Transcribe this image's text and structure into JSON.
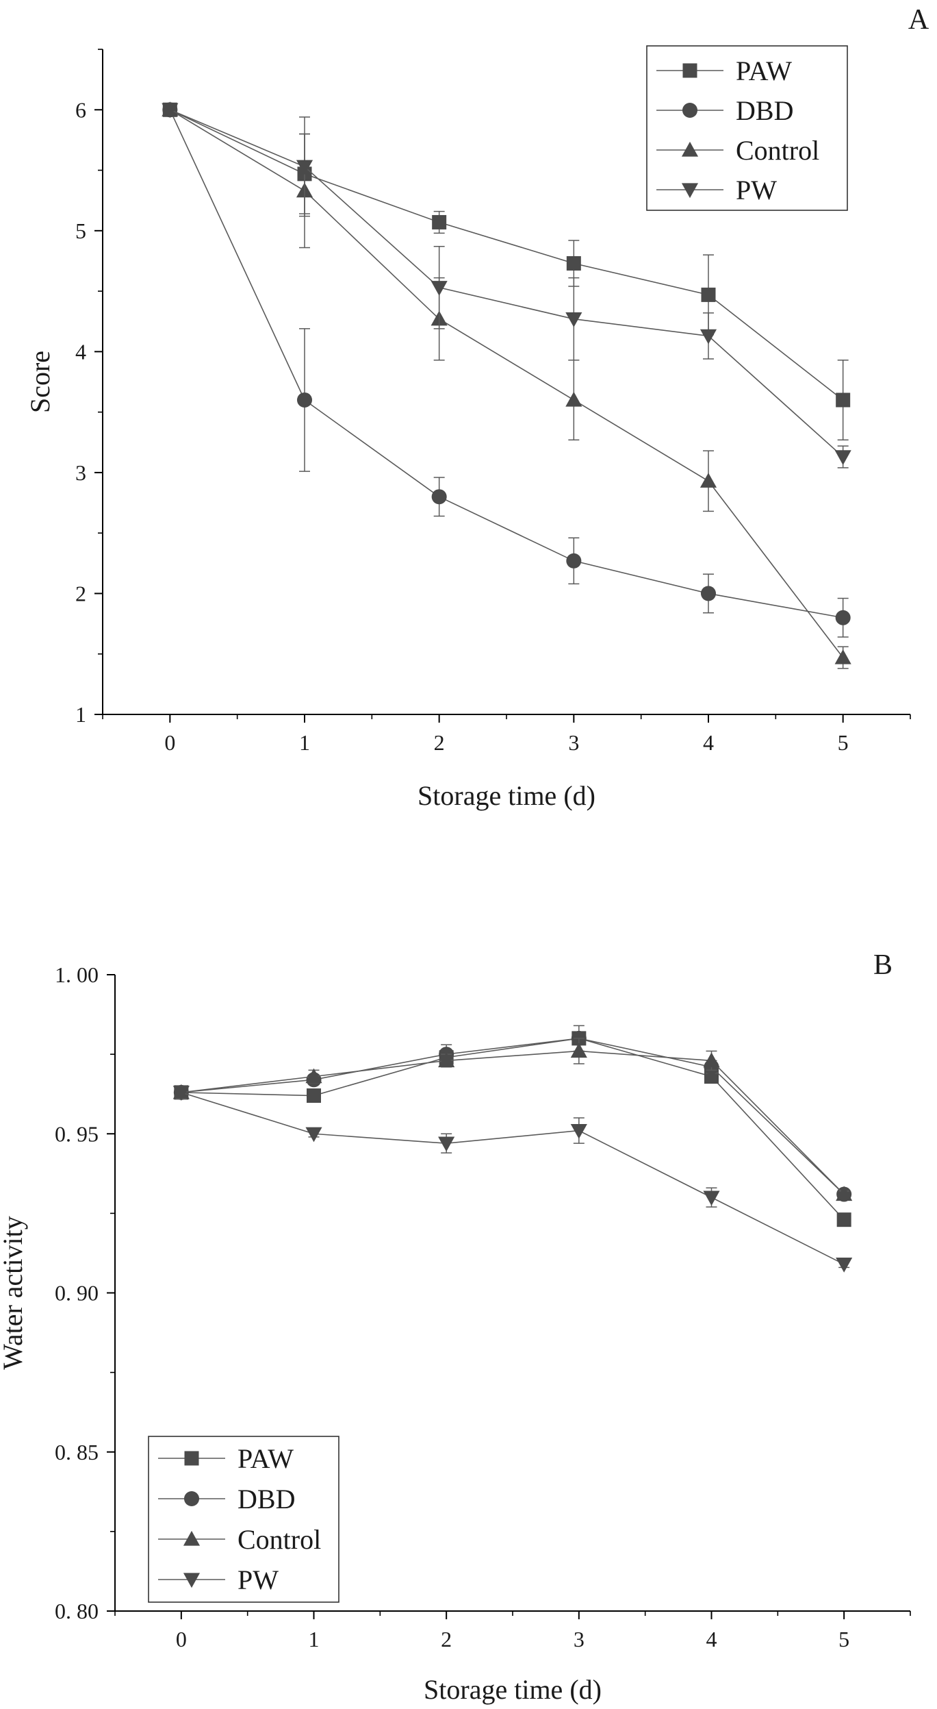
{
  "colors": {
    "marker": "#4a4a4a",
    "line": "#5a5a5a",
    "axis": "#000000"
  },
  "chart_data": [
    {
      "type": "line",
      "panel_label": "A",
      "xlabel": "Storage time (d)",
      "ylabel": "Score",
      "x": [
        0,
        1,
        2,
        3,
        4,
        5
      ],
      "x_ticks": [
        "0",
        "1",
        "2",
        "3",
        "4",
        "5"
      ],
      "xlim": [
        -0.5,
        5.5
      ],
      "ylim": [
        1,
        6.5
      ],
      "y_ticks": [
        "1",
        "2",
        "3",
        "4",
        "5",
        "6"
      ],
      "legend_position": "top-right",
      "series": [
        {
          "name": "PAW",
          "marker": "square",
          "values": [
            6.0,
            5.47,
            5.07,
            4.73,
            4.47,
            3.6
          ],
          "errors": [
            0,
            0.33,
            0.09,
            0.19,
            0.33,
            0.33
          ]
        },
        {
          "name": "DBD",
          "marker": "circle",
          "values": [
            6.0,
            3.6,
            2.8,
            2.27,
            2.0,
            1.8
          ],
          "errors": [
            0,
            0.59,
            0.16,
            0.19,
            0.16,
            0.16
          ]
        },
        {
          "name": "Control",
          "marker": "triangle-up",
          "values": [
            6.0,
            5.33,
            4.27,
            3.6,
            2.93,
            1.47
          ],
          "errors": [
            0,
            0.47,
            0.34,
            0.33,
            0.25,
            0.09
          ]
        },
        {
          "name": "PW",
          "marker": "triangle-down",
          "values": [
            6.0,
            5.53,
            4.53,
            4.27,
            4.13,
            3.13
          ],
          "errors": [
            0,
            0.41,
            0.34,
            0.34,
            0.19,
            0.09
          ]
        }
      ]
    },
    {
      "type": "line",
      "panel_label": "B",
      "xlabel": "Storage time (d)",
      "ylabel": "Water activity",
      "x": [
        0,
        1,
        2,
        3,
        4,
        5
      ],
      "x_ticks": [
        "0",
        "1",
        "2",
        "3",
        "4",
        "5"
      ],
      "xlim": [
        -0.5,
        5.5
      ],
      "ylim": [
        0.8,
        1.0
      ],
      "y_ticks": [
        "0. 80",
        "0. 85",
        "0. 90",
        "0. 95",
        "1. 00"
      ],
      "legend_position": "bottom-left",
      "series": [
        {
          "name": "PAW",
          "marker": "square",
          "values": [
            0.963,
            0.962,
            0.974,
            0.98,
            0.968,
            0.923
          ],
          "errors": [
            0.002,
            0.001,
            0.002,
            0.002,
            0.002,
            0.001
          ]
        },
        {
          "name": "DBD",
          "marker": "circle",
          "values": [
            0.963,
            0.967,
            0.975,
            0.98,
            0.971,
            0.931
          ],
          "errors": [
            0.002,
            0.001,
            0.003,
            0.004,
            0.002,
            0.001
          ]
        },
        {
          "name": "Control",
          "marker": "triangle-up",
          "values": [
            0.963,
            0.968,
            0.973,
            0.976,
            0.973,
            0.931
          ],
          "errors": [
            0.002,
            0.002,
            0.002,
            0.004,
            0.003,
            0.001
          ]
        },
        {
          "name": "PW",
          "marker": "triangle-down",
          "values": [
            0.963,
            0.95,
            0.947,
            0.951,
            0.93,
            0.909
          ],
          "errors": [
            0.002,
            0.001,
            0.003,
            0.004,
            0.003,
            0.001
          ]
        }
      ]
    }
  ]
}
